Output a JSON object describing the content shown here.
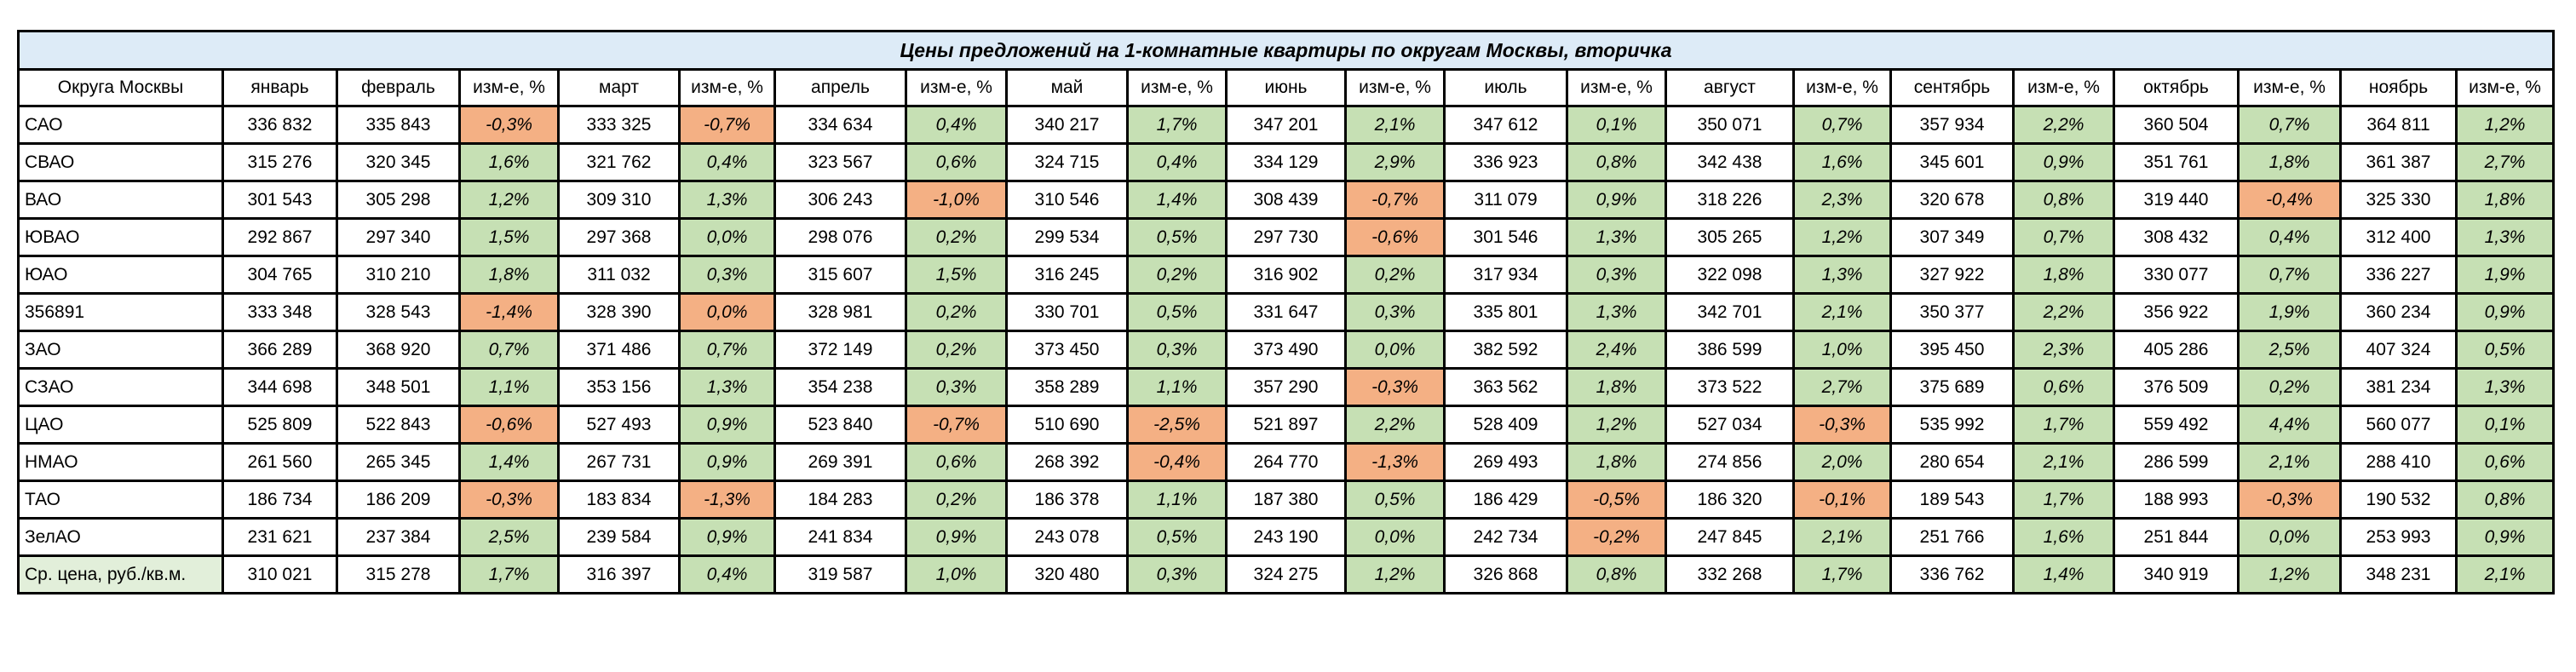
{
  "title": "Цены предложений на 1-комнатные квартиры по округам Москвы, вторичка",
  "colors": {
    "positive": "#C6E0B4",
    "negative": "#F4B084",
    "title_bg": "#DDEBF7",
    "avg_label_bg": "#E2EFDA"
  },
  "headers": [
    "Округа Москвы",
    "январь",
    "февраль",
    "изм-е, %",
    "март",
    "изм-е, %",
    "апрель",
    "изм-е, %",
    "май",
    "изм-е, %",
    "июнь",
    "изм-е, %",
    "июль",
    "изм-е, %",
    "август",
    "изм-е, %",
    "сентябрь",
    "изм-е, %",
    "октябрь",
    "изм-е, %",
    "ноябрь",
    "изм-е, %"
  ],
  "rows": [
    {
      "district": "САО",
      "cells": [
        "336 832",
        "335 843",
        "-0,3%",
        "333 325",
        "-0,7%",
        "334 634",
        "0,4%",
        "340 217",
        "1,7%",
        "347 201",
        "2,1%",
        "347 612",
        "0,1%",
        "350 071",
        "0,7%",
        "357 934",
        "2,2%",
        "360 504",
        "0,7%",
        "364 811",
        "1,2%"
      ],
      "signs": [
        "",
        "",
        "neg",
        "",
        "neg",
        "",
        "pos",
        "",
        "pos",
        "",
        "pos",
        "",
        "pos",
        "",
        "pos",
        "",
        "pos",
        "",
        "pos",
        "",
        "pos"
      ]
    },
    {
      "district": "СВАО",
      "cells": [
        "315 276",
        "320 345",
        "1,6%",
        "321 762",
        "0,4%",
        "323 567",
        "0,6%",
        "324 715",
        "0,4%",
        "334 129",
        "2,9%",
        "336 923",
        "0,8%",
        "342 438",
        "1,6%",
        "345 601",
        "0,9%",
        "351 761",
        "1,8%",
        "361 387",
        "2,7%"
      ],
      "signs": [
        "",
        "",
        "pos",
        "",
        "pos",
        "",
        "pos",
        "",
        "pos",
        "",
        "pos",
        "",
        "pos",
        "",
        "pos",
        "",
        "pos",
        "",
        "pos",
        "",
        "pos"
      ]
    },
    {
      "district": "ВАО",
      "cells": [
        "301 543",
        "305 298",
        "1,2%",
        "309 310",
        "1,3%",
        "306 243",
        "-1,0%",
        "310 546",
        "1,4%",
        "308 439",
        "-0,7%",
        "311 079",
        "0,9%",
        "318 226",
        "2,3%",
        "320 678",
        "0,8%",
        "319 440",
        "-0,4%",
        "325 330",
        "1,8%"
      ],
      "signs": [
        "",
        "",
        "pos",
        "",
        "pos",
        "",
        "neg",
        "",
        "pos",
        "",
        "neg",
        "",
        "pos",
        "",
        "pos",
        "",
        "pos",
        "",
        "neg",
        "",
        "pos"
      ]
    },
    {
      "district": "ЮВАО",
      "cells": [
        "292 867",
        "297 340",
        "1,5%",
        "297 368",
        "0,0%",
        "298 076",
        "0,2%",
        "299 534",
        "0,5%",
        "297 730",
        "-0,6%",
        "301 546",
        "1,3%",
        "305 265",
        "1,2%",
        "307 349",
        "0,7%",
        "308 432",
        "0,4%",
        "312 400",
        "1,3%"
      ],
      "signs": [
        "",
        "",
        "pos",
        "",
        "pos",
        "",
        "pos",
        "",
        "pos",
        "",
        "neg",
        "",
        "pos",
        "",
        "pos",
        "",
        "pos",
        "",
        "pos",
        "",
        "pos"
      ]
    },
    {
      "district": "ЮАО",
      "cells": [
        "304 765",
        "310 210",
        "1,8%",
        "311 032",
        "0,3%",
        "315 607",
        "1,5%",
        "316 245",
        "0,2%",
        "316 902",
        "0,2%",
        "317 934",
        "0,3%",
        "322 098",
        "1,3%",
        "327 922",
        "1,8%",
        "330 077",
        "0,7%",
        "336 227",
        "1,9%"
      ],
      "signs": [
        "",
        "",
        "pos",
        "",
        "pos",
        "",
        "pos",
        "",
        "pos",
        "",
        "pos",
        "",
        "pos",
        "",
        "pos",
        "",
        "pos",
        "",
        "pos",
        "",
        "pos"
      ]
    },
    {
      "district": "356891",
      "cells": [
        "333 348",
        "328 543",
        "-1,4%",
        "328 390",
        "0,0%",
        "328 981",
        "0,2%",
        "330 701",
        "0,5%",
        "331 647",
        "0,3%",
        "335 801",
        "1,3%",
        "342 701",
        "2,1%",
        "350 377",
        "2,2%",
        "356 922",
        "1,9%",
        "360 234",
        "0,9%"
      ],
      "signs": [
        "",
        "",
        "neg",
        "",
        "neg",
        "",
        "pos",
        "",
        "pos",
        "",
        "pos",
        "",
        "pos",
        "",
        "pos",
        "",
        "pos",
        "",
        "pos",
        "",
        "pos"
      ]
    },
    {
      "district": "ЗАО",
      "cells": [
        "366 289",
        "368 920",
        "0,7%",
        "371 486",
        "0,7%",
        "372 149",
        "0,2%",
        "373 450",
        "0,3%",
        "373 490",
        "0,0%",
        "382 592",
        "2,4%",
        "386 599",
        "1,0%",
        "395 450",
        "2,3%",
        "405 286",
        "2,5%",
        "407 324",
        "0,5%"
      ],
      "signs": [
        "",
        "",
        "pos",
        "",
        "pos",
        "",
        "pos",
        "",
        "pos",
        "",
        "pos",
        "",
        "pos",
        "",
        "pos",
        "",
        "pos",
        "",
        "pos",
        "",
        "pos"
      ]
    },
    {
      "district": "СЗАО",
      "cells": [
        "344 698",
        "348 501",
        "1,1%",
        "353 156",
        "1,3%",
        "354 238",
        "0,3%",
        "358 289",
        "1,1%",
        "357 290",
        "-0,3%",
        "363 562",
        "1,8%",
        "373 522",
        "2,7%",
        "375 689",
        "0,6%",
        "376 509",
        "0,2%",
        "381 234",
        "1,3%"
      ],
      "signs": [
        "",
        "",
        "pos",
        "",
        "pos",
        "",
        "pos",
        "",
        "pos",
        "",
        "neg",
        "",
        "pos",
        "",
        "pos",
        "",
        "pos",
        "",
        "pos",
        "",
        "pos"
      ]
    },
    {
      "district": "ЦАО",
      "cells": [
        "525 809",
        "522 843",
        "-0,6%",
        "527 493",
        "0,9%",
        "523 840",
        "-0,7%",
        "510 690",
        "-2,5%",
        "521 897",
        "2,2%",
        "528 409",
        "1,2%",
        "527 034",
        "-0,3%",
        "535 992",
        "1,7%",
        "559 492",
        "4,4%",
        "560 077",
        "0,1%"
      ],
      "signs": [
        "",
        "",
        "neg",
        "",
        "pos",
        "",
        "neg",
        "",
        "neg",
        "",
        "pos",
        "",
        "pos",
        "",
        "neg",
        "",
        "pos",
        "",
        "pos",
        "",
        "pos"
      ]
    },
    {
      "district": "НМАО",
      "cells": [
        "261 560",
        "265 345",
        "1,4%",
        "267 731",
        "0,9%",
        "269 391",
        "0,6%",
        "268 392",
        "-0,4%",
        "264 770",
        "-1,3%",
        "269 493",
        "1,8%",
        "274 856",
        "2,0%",
        "280 654",
        "2,1%",
        "286 599",
        "2,1%",
        "288 410",
        "0,6%"
      ],
      "signs": [
        "",
        "",
        "pos",
        "",
        "pos",
        "",
        "pos",
        "",
        "neg",
        "",
        "neg",
        "",
        "pos",
        "",
        "pos",
        "",
        "pos",
        "",
        "pos",
        "",
        "pos"
      ]
    },
    {
      "district": "ТАО",
      "cells": [
        "186 734",
        "186 209",
        "-0,3%",
        "183 834",
        "-1,3%",
        "184 283",
        "0,2%",
        "186 378",
        "1,1%",
        "187 380",
        "0,5%",
        "186 429",
        "-0,5%",
        "186 320",
        "-0,1%",
        "189 543",
        "1,7%",
        "188 993",
        "-0,3%",
        "190 532",
        "0,8%"
      ],
      "signs": [
        "",
        "",
        "neg",
        "",
        "neg",
        "",
        "pos",
        "",
        "pos",
        "",
        "pos",
        "",
        "neg",
        "",
        "neg",
        "",
        "pos",
        "",
        "neg",
        "",
        "pos"
      ]
    },
    {
      "district": "ЗелАО",
      "cells": [
        "231 621",
        "237 384",
        "2,5%",
        "239 584",
        "0,9%",
        "241 834",
        "0,9%",
        "243 078",
        "0,5%",
        "243 190",
        "0,0%",
        "242 734",
        "-0,2%",
        "247 845",
        "2,1%",
        "251 766",
        "1,6%",
        "251 844",
        "0,0%",
        "253 993",
        "0,9%"
      ],
      "signs": [
        "",
        "",
        "pos",
        "",
        "pos",
        "",
        "pos",
        "",
        "pos",
        "",
        "pos",
        "",
        "neg",
        "",
        "pos",
        "",
        "pos",
        "",
        "pos",
        "",
        "pos"
      ]
    },
    {
      "district": "Ср. цена, руб./кв.м.",
      "cells": [
        "310 021",
        "315 278",
        "1,7%",
        "316 397",
        "0,4%",
        "319 587",
        "1,0%",
        "320 480",
        "0,3%",
        "324 275",
        "1,2%",
        "326 868",
        "0,8%",
        "332 268",
        "1,7%",
        "336 762",
        "1,4%",
        "340 919",
        "1,2%",
        "348 231",
        "2,1%"
      ],
      "signs": [
        "",
        "",
        "pos",
        "",
        "pos",
        "",
        "pos",
        "",
        "pos",
        "",
        "pos",
        "",
        "pos",
        "",
        "pos",
        "",
        "pos",
        "",
        "pos",
        "",
        "pos"
      ],
      "is_average": true
    }
  ]
}
